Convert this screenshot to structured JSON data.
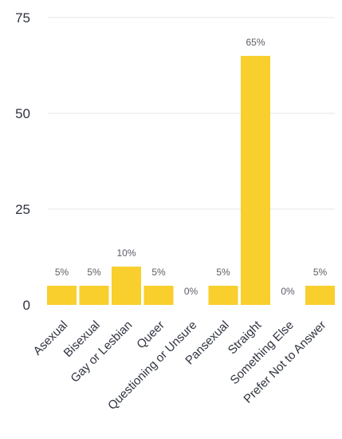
{
  "chart_data": {
    "type": "bar",
    "categories": [
      "Asexual",
      "Bisexual",
      "Gay or Lesbian",
      "Queer",
      "Questioning or Unsure",
      "Pansexual",
      "Straight",
      "Something Else",
      "Prefer Not to Answer"
    ],
    "values": [
      5,
      5,
      10,
      5,
      0,
      5,
      65,
      0,
      5
    ],
    "data_labels": [
      "5%",
      "5%",
      "10%",
      "5%",
      "0%",
      "5%",
      "65%",
      "0%",
      "5%"
    ],
    "y_ticks": [
      "0",
      "25",
      "50",
      "75"
    ],
    "ylim": [
      0,
      75
    ],
    "grid": true,
    "legend": "none",
    "bar_color": "#f8cf2c",
    "grid_color": "#e6e6e6"
  }
}
